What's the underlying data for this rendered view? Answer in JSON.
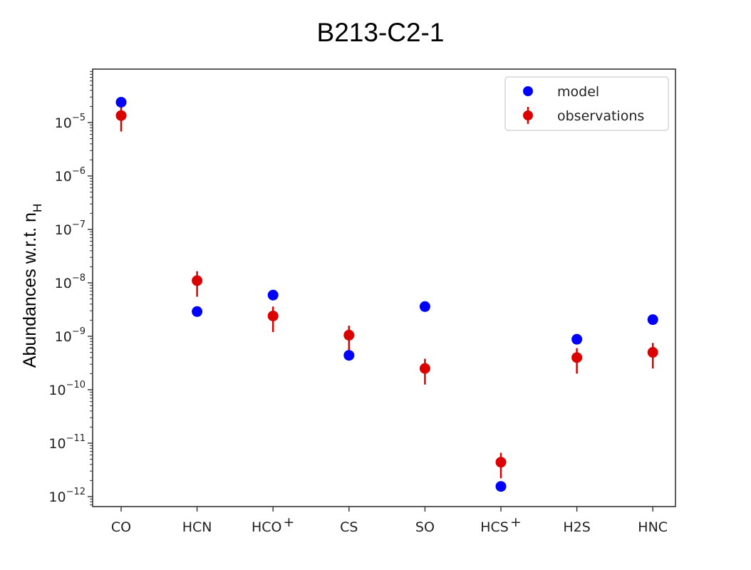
{
  "chart_data": {
    "type": "scatter",
    "title": "B213-C2-1",
    "ylabel": "Abundances w.r.t. n",
    "ylabel_subscript": "H",
    "yscale": "log",
    "ylim": [
      6.5e-13,
      0.0001
    ],
    "yticks": [
      {
        "value": 1e-05,
        "base": "10",
        "exp": "−5"
      },
      {
        "value": 1e-06,
        "base": "10",
        "exp": "−6"
      },
      {
        "value": 1e-07,
        "base": "10",
        "exp": "−7"
      },
      {
        "value": 1e-08,
        "base": "10",
        "exp": "−8"
      },
      {
        "value": 1e-09,
        "base": "10",
        "exp": "−9"
      },
      {
        "value": 1e-10,
        "base": "10",
        "exp": "−10"
      },
      {
        "value": 1e-11,
        "base": "10",
        "exp": "−11"
      },
      {
        "value": 1e-12,
        "base": "10",
        "exp": "−12"
      }
    ],
    "categories": [
      {
        "base": "CO",
        "sup": ""
      },
      {
        "base": "HCN",
        "sup": ""
      },
      {
        "base": "HCO",
        "sup": "+"
      },
      {
        "base": "CS",
        "sup": ""
      },
      {
        "base": "SO",
        "sup": ""
      },
      {
        "base": "HCS",
        "sup": "+"
      },
      {
        "base": "H2S",
        "sup": ""
      },
      {
        "base": "HNC",
        "sup": ""
      }
    ],
    "series": [
      {
        "name": "model",
        "color": "#0000ff",
        "values": [
          2.4e-05,
          2.9e-09,
          5.9e-09,
          4.4e-10,
          3.6e-09,
          1.55e-12,
          8.8e-10,
          2.05e-09
        ]
      },
      {
        "name": "observations",
        "color": "#dd0000",
        "values": [
          1.35e-05,
          1.1e-08,
          2.4e-09,
          1.05e-09,
          2.5e-10,
          4.4e-12,
          4e-10,
          5e-10
        ],
        "err_low": [
          6.8e-06,
          5.5e-09,
          1.2e-09,
          5.3e-10,
          1.25e-10,
          2.2e-12,
          2e-10,
          2.5e-10
        ],
        "err_high": [
          2e-05,
          1.65e-08,
          3.6e-09,
          1.58e-09,
          3.8e-10,
          6.6e-12,
          6e-10,
          7.5e-10
        ]
      }
    ],
    "legend": "top-right",
    "grid": false
  }
}
